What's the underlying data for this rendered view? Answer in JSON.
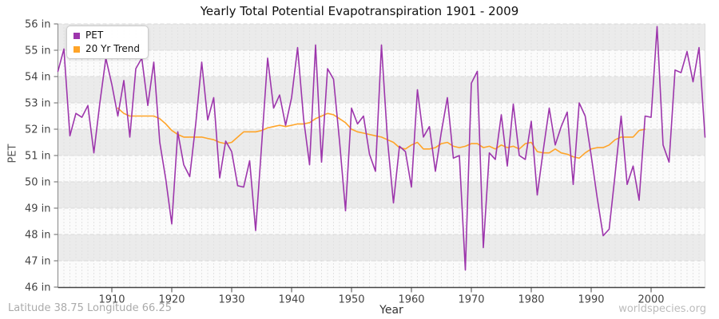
{
  "header": {
    "title": "Yearly Total Potential Evapotranspiration 1901 - 2009"
  },
  "legend": {
    "position": "top-left",
    "items": [
      {
        "label": "PET",
        "color": "#9D36AC"
      },
      {
        "label": "20 Yr Trend",
        "color": "#FFA428"
      }
    ]
  },
  "axes": {
    "y_label": "PET",
    "x_label": "Year",
    "y_tick_suffix": " in",
    "y_ticks": [
      56,
      55,
      54,
      53,
      52,
      51,
      50,
      49,
      48,
      47,
      46
    ],
    "x_ticks": [
      1910,
      1920,
      1930,
      1940,
      1950,
      1960,
      1970,
      1980,
      1990,
      2000
    ]
  },
  "footer": {
    "left": "Latitude 38.75 Longitude 66.25",
    "right": "worldspecies.org"
  },
  "style": {
    "pet_color": "#9D36AC",
    "trend_color": "#FFA428",
    "band_color": "#ebebeb",
    "plot_bg": "#fbfbfb",
    "grid_color": "#d9d9d9",
    "minor_grid_color": "#e2e2e2",
    "axis_color": "#444444",
    "tick_label_color": "#444444",
    "band_rows": [
      55,
      53,
      51,
      49,
      47
    ]
  },
  "chart_data": {
    "type": "line",
    "title": "Yearly Total Potential Evapotranspiration 1901 - 2009",
    "xlabel": "Year",
    "ylabel": "PET",
    "xlim": [
      1901,
      2009
    ],
    "ylim": [
      46,
      56
    ],
    "grid": "on",
    "legend_position": "top-left",
    "series": [
      {
        "name": "PET",
        "color": "#9D36AC",
        "x_start": 1901,
        "values": [
          54.2,
          55.05,
          51.75,
          52.6,
          52.45,
          52.9,
          51.1,
          53.0,
          54.7,
          53.7,
          52.5,
          53.85,
          51.7,
          54.3,
          54.7,
          52.9,
          54.55,
          51.5,
          50.1,
          48.4,
          51.9,
          50.65,
          50.2,
          52.2,
          54.55,
          52.35,
          53.2,
          50.15,
          51.55,
          51.15,
          49.85,
          49.8,
          50.8,
          48.15,
          51.4,
          54.7,
          52.8,
          53.3,
          52.15,
          53.2,
          55.1,
          52.4,
          50.65,
          55.2,
          50.75,
          54.3,
          53.9,
          51.55,
          48.9,
          52.8,
          52.2,
          52.5,
          51.05,
          50.4,
          55.2,
          51.6,
          49.2,
          51.35,
          51.15,
          49.8,
          53.5,
          51.7,
          52.1,
          50.4,
          51.9,
          53.2,
          50.9,
          51.0,
          46.65,
          53.75,
          54.2,
          47.5,
          51.1,
          50.85,
          52.55,
          50.6,
          52.95,
          51.0,
          50.85,
          52.3,
          49.5,
          51.2,
          52.8,
          51.4,
          52.1,
          52.65,
          49.9,
          53.0,
          52.5,
          51.0,
          49.4,
          47.95,
          48.2,
          50.3,
          52.5,
          49.9,
          50.6,
          49.3,
          52.5,
          52.45,
          55.9,
          51.4,
          50.75,
          54.25,
          54.15,
          54.95,
          53.8,
          55.1,
          51.7
        ]
      },
      {
        "name": "20 Yr Trend",
        "color": "#FFA428",
        "x_start": 1911,
        "values": [
          52.8,
          52.6,
          52.5,
          52.5,
          52.5,
          52.5,
          52.5,
          52.4,
          52.2,
          51.95,
          51.8,
          51.7,
          51.7,
          51.7,
          51.7,
          51.65,
          51.6,
          51.5,
          51.45,
          51.5,
          51.7,
          51.9,
          51.9,
          51.9,
          51.95,
          52.05,
          52.1,
          52.15,
          52.1,
          52.15,
          52.2,
          52.2,
          52.25,
          52.4,
          52.5,
          52.6,
          52.55,
          52.4,
          52.25,
          52.0,
          51.9,
          51.85,
          51.8,
          51.75,
          51.7,
          51.6,
          51.5,
          51.3,
          51.25,
          51.4,
          51.5,
          51.25,
          51.25,
          51.3,
          51.45,
          51.5,
          51.35,
          51.3,
          51.35,
          51.45,
          51.45,
          51.3,
          51.35,
          51.25,
          51.4,
          51.3,
          51.35,
          51.25,
          51.45,
          51.5,
          51.15,
          51.1,
          51.1,
          51.25,
          51.1,
          51.05,
          50.95,
          50.9,
          51.1,
          51.25,
          51.3,
          51.3,
          51.4,
          51.6,
          51.7,
          51.7,
          51.7,
          51.95,
          52.0
        ]
      }
    ]
  }
}
